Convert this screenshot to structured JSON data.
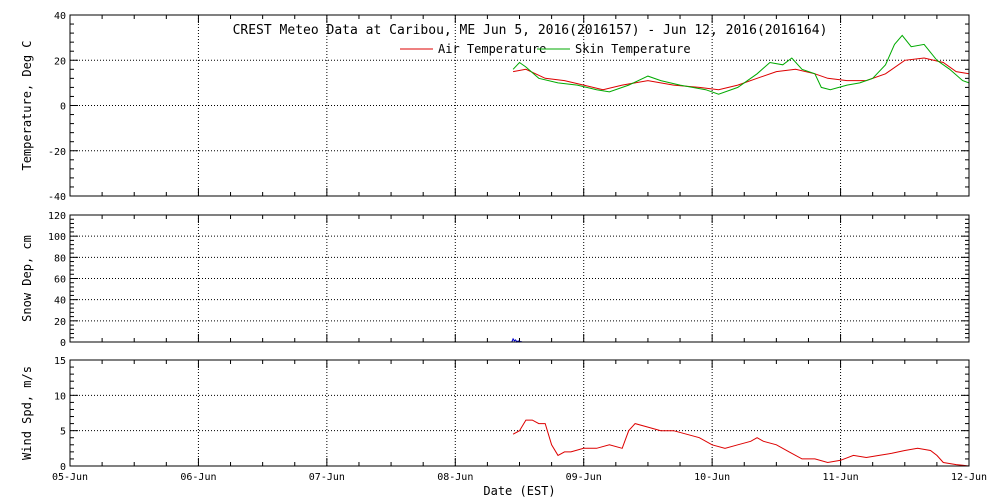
{
  "chart_data": {
    "type": "line",
    "title": "CREST Meteo Data at Caribou, ME   Jun  5, 2016(2016157) - Jun 12, 2016(2016164)",
    "xlabel": "Date (EST)",
    "x_tick_labels": [
      "05-Jun",
      "06-Jun",
      "07-Jun",
      "08-Jun",
      "09-Jun",
      "10-Jun",
      "11-Jun",
      "12-Jun"
    ],
    "xlim_days": [
      0,
      7
    ],
    "grid": true,
    "legend_position": "top-center",
    "panels": [
      {
        "ylabel": "Temperature, Deg C",
        "ylim": [
          -40,
          40
        ],
        "y_ticks": [
          -40,
          -20,
          0,
          20,
          40
        ],
        "series": [
          {
            "name": "Air Temperature",
            "color": "#dd0000",
            "x": [
              3.45,
              3.55,
              3.7,
              3.85,
              4.0,
              4.15,
              4.3,
              4.5,
              4.7,
              4.9,
              5.05,
              5.2,
              5.35,
              5.5,
              5.65,
              5.8,
              5.9,
              6.05,
              6.2,
              6.35,
              6.5,
              6.65,
              6.8,
              6.9,
              7.0
            ],
            "y": [
              15,
              16,
              12,
              11,
              9,
              7,
              9,
              11,
              9,
              8,
              7,
              9,
              12,
              15,
              16,
              14,
              12,
              11,
              11,
              14,
              20,
              21,
              19,
              15,
              14
            ]
          },
          {
            "name": "Skin Temperature",
            "color": "#00aa00",
            "x": [
              3.45,
              3.5,
              3.55,
              3.65,
              3.8,
              3.95,
              4.1,
              4.2,
              4.35,
              4.5,
              4.6,
              4.75,
              4.95,
              5.05,
              5.2,
              5.35,
              5.45,
              5.55,
              5.62,
              5.7,
              5.8,
              5.85,
              5.92,
              6.05,
              6.15,
              6.25,
              6.35,
              6.42,
              6.48,
              6.55,
              6.65,
              6.75,
              6.85,
              6.95,
              7.0
            ],
            "y": [
              16,
              19,
              17,
              12,
              10,
              9,
              7,
              6,
              9,
              13,
              11,
              9,
              7,
              5,
              8,
              14,
              19,
              18,
              21,
              16,
              14,
              8,
              7,
              9,
              10,
              12,
              18,
              27,
              31,
              26,
              27,
              20,
              16,
              11,
              10
            ]
          }
        ]
      },
      {
        "ylabel": "Snow Dep, cm",
        "ylim": [
          0,
          120
        ],
        "y_ticks": [
          0,
          20,
          40,
          60,
          80,
          100,
          120
        ],
        "series": [
          {
            "name": "",
            "color": "#0000cc",
            "x": [
              3.44,
              3.45,
              3.46,
              3.47,
              3.48,
              3.49,
              3.5,
              3.51,
              3.52
            ],
            "y": [
              0,
              3,
              1,
              2,
              0,
              1,
              0,
              0.5,
              0
            ]
          }
        ]
      },
      {
        "ylabel": "Wind Spd, m/s",
        "ylim": [
          0,
          15
        ],
        "y_ticks": [
          0,
          5,
          10,
          15
        ],
        "series": [
          {
            "name": "",
            "color": "#dd0000",
            "x": [
              3.45,
              3.5,
              3.55,
              3.6,
              3.65,
              3.7,
              3.75,
              3.8,
              3.85,
              3.9,
              4.0,
              4.1,
              4.2,
              4.3,
              4.35,
              4.4,
              4.5,
              4.6,
              4.7,
              4.8,
              4.9,
              5.0,
              5.1,
              5.2,
              5.3,
              5.35,
              5.4,
              5.5,
              5.6,
              5.7,
              5.8,
              5.9,
              6.0,
              6.1,
              6.2,
              6.3,
              6.4,
              6.5,
              6.6,
              6.7,
              6.75,
              6.8,
              6.9,
              6.95,
              7.0
            ],
            "y": [
              4.5,
              5,
              6.5,
              6.5,
              6,
              6,
              3,
              1.5,
              2,
              2,
              2.5,
              2.5,
              3,
              2.5,
              5,
              6,
              5.5,
              5,
              5,
              4.5,
              4,
              3,
              2.5,
              3,
              3.5,
              4,
              3.5,
              3,
              2,
              1,
              1,
              0.5,
              0.8,
              1.5,
              1.2,
              1.5,
              1.8,
              2.2,
              2.5,
              2.2,
              1.5,
              0.5,
              0.2,
              0.1,
              0
            ]
          }
        ]
      }
    ]
  }
}
